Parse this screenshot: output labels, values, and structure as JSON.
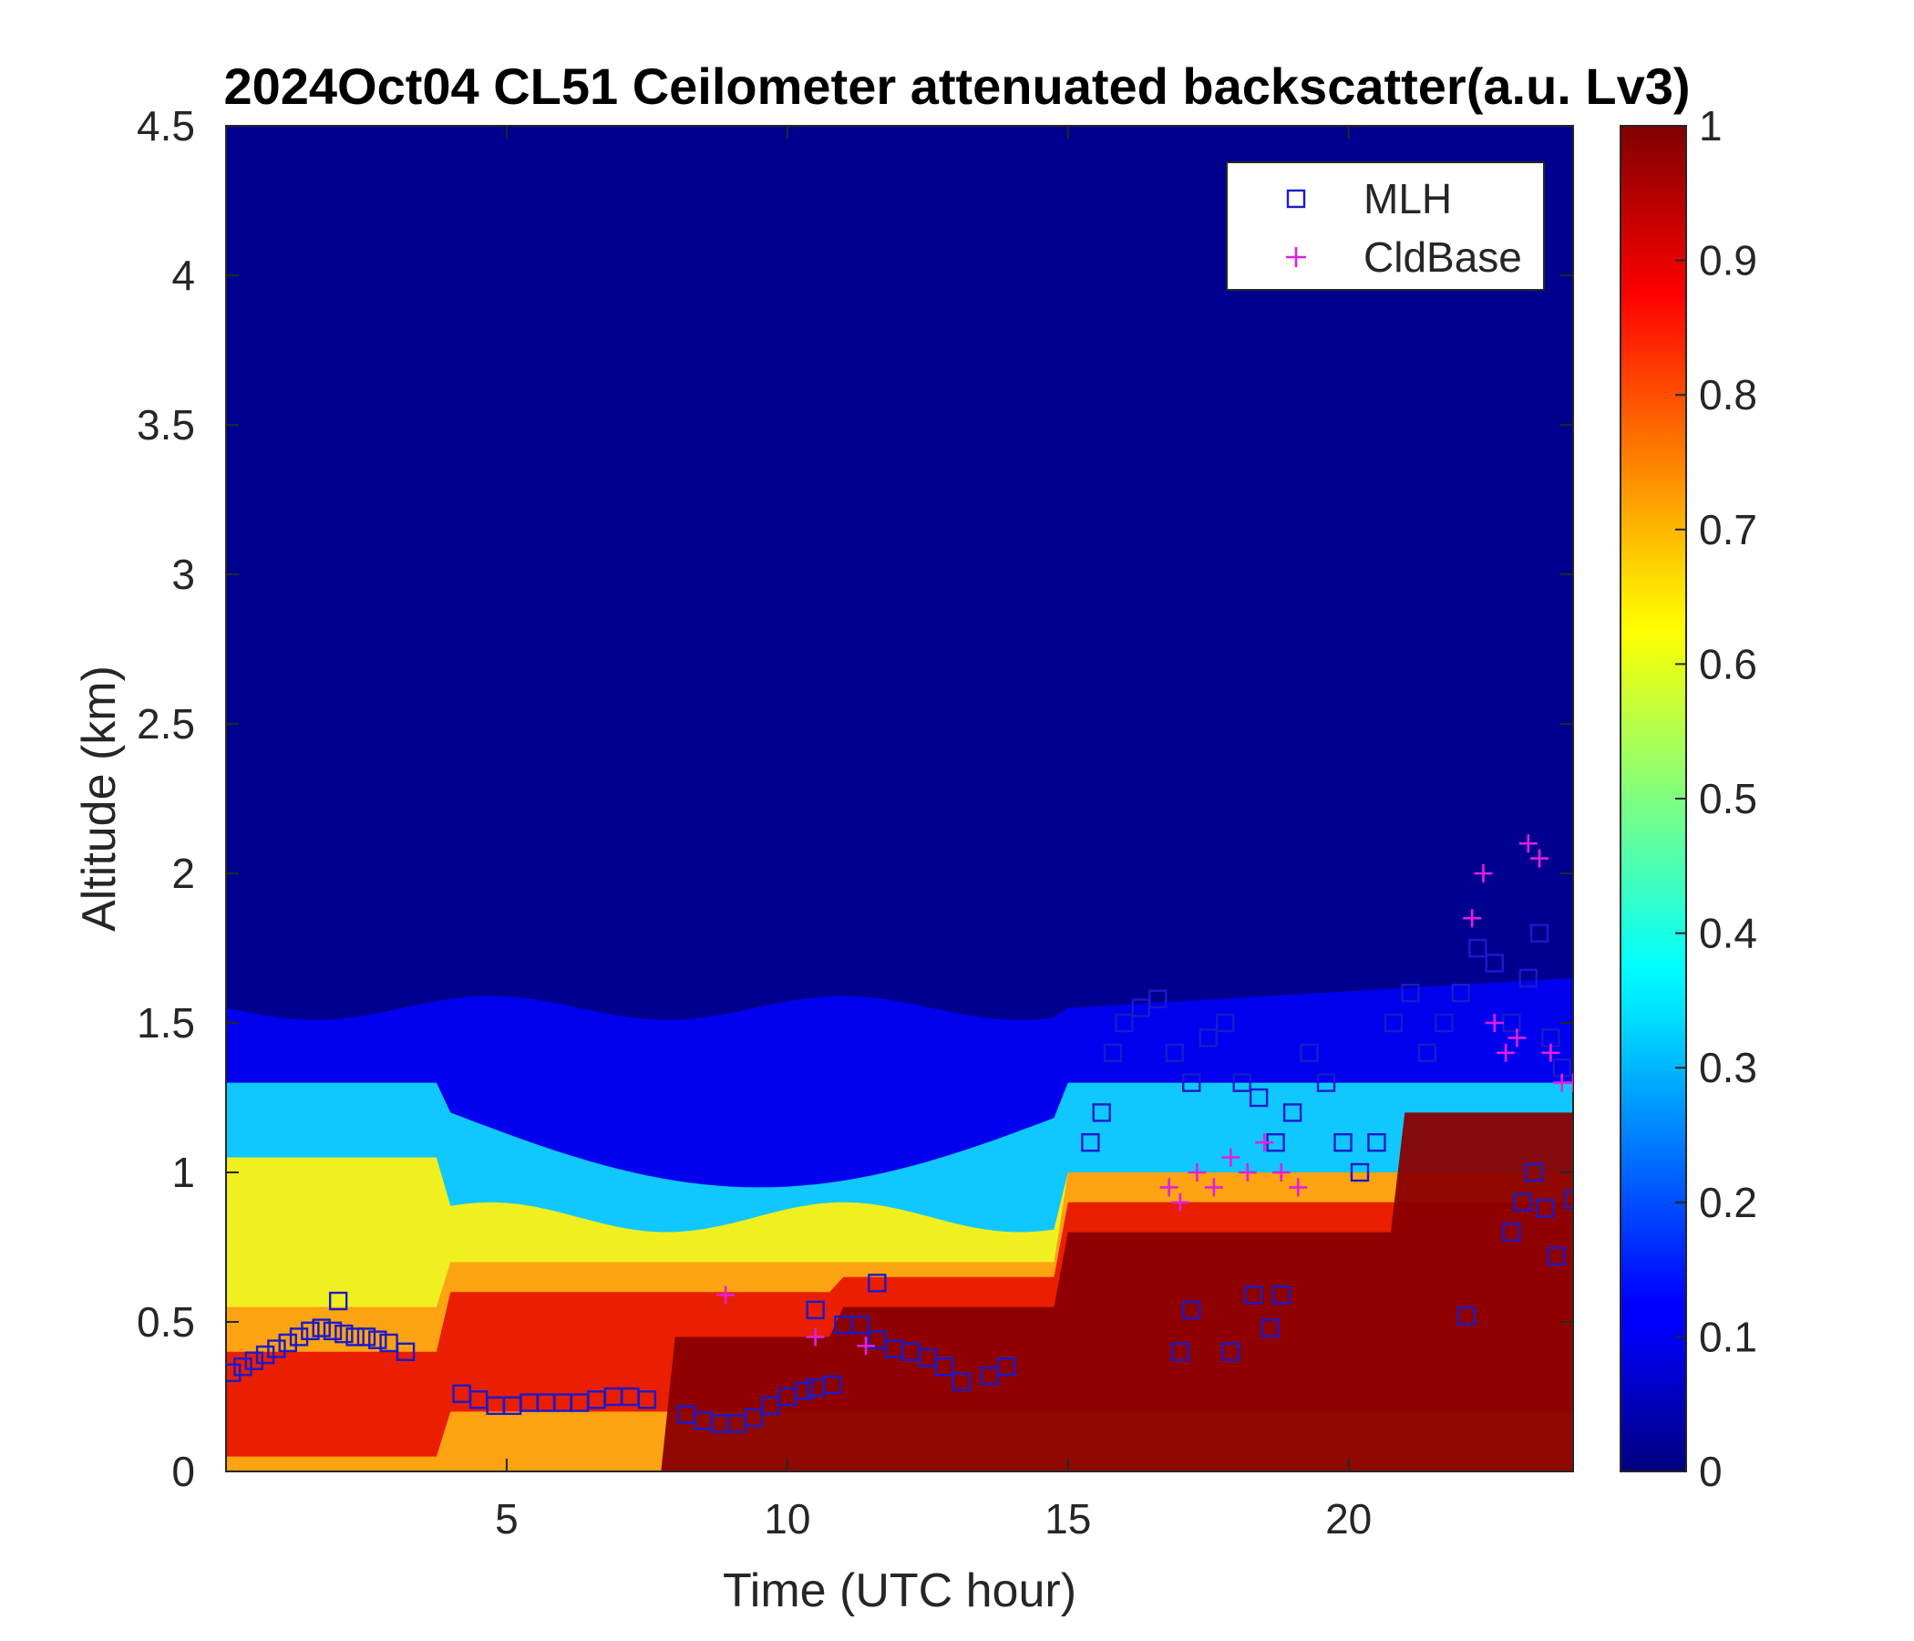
{
  "chart_data": {
    "type": "heatmap",
    "title": "2024Oct04 CL51 Ceilometer attenuated backscatter(a.u. Lv3)",
    "xlabel": "Time (UTC hour)",
    "ylabel": "Altitude (km)",
    "xlim": [
      0,
      24
    ],
    "ylim": [
      0,
      4.5
    ],
    "x_ticks": [
      "5",
      "10",
      "15",
      "20"
    ],
    "y_ticks": [
      "0",
      "0.5",
      "1",
      "1.5",
      "2",
      "2.5",
      "3",
      "3.5",
      "4",
      "4.5"
    ],
    "colorbar": {
      "range": [
        0,
        1
      ],
      "ticks": [
        "0",
        "0.1",
        "0.2",
        "0.3",
        "0.4",
        "0.5",
        "0.6",
        "0.7",
        "0.8",
        "0.9",
        "1"
      ],
      "colormap": "jet"
    },
    "legend": {
      "placement": "top-right",
      "entries": [
        {
          "label": "MLH",
          "marker": "square",
          "color": "#1a1acc"
        },
        {
          "label": "CldBase",
          "marker": "plus",
          "color": "#e020e0"
        }
      ]
    },
    "series": [
      {
        "name": "MLH",
        "marker": "square",
        "color": "#1a1acc",
        "x": [
          0.1,
          0.3,
          0.5,
          0.7,
          0.9,
          1.1,
          1.3,
          1.5,
          1.7,
          1.9,
          2.1,
          2.3,
          2.5,
          2.7,
          2.9,
          3.2,
          4.2,
          4.5,
          4.8,
          5.1,
          5.4,
          5.7,
          6.0,
          6.3,
          6.6,
          6.9,
          7.2,
          7.5,
          8.2,
          8.5,
          8.8,
          9.1,
          9.4,
          9.7,
          10.0,
          10.3,
          10.5,
          10.8,
          11.0,
          11.3,
          11.6,
          11.9,
          12.2,
          12.5,
          12.8,
          13.1,
          13.6,
          13.9,
          15.4,
          15.6,
          15.8,
          16.0,
          16.3,
          16.6,
          16.9,
          17.2,
          17.5,
          17.8,
          18.1,
          18.4,
          18.7,
          19.0,
          19.3,
          19.6,
          19.9,
          20.2,
          20.5,
          20.8,
          21.1,
          21.4,
          21.7,
          22.0,
          22.3,
          22.6,
          22.9,
          23.2,
          23.4,
          23.6,
          23.8,
          24.0,
          2.0,
          10.5,
          11.6,
          17.0,
          17.2,
          17.9,
          18.3,
          18.6,
          18.8,
          22.1,
          22.9,
          23.1,
          23.3,
          23.5,
          23.7
        ],
        "y": [
          0.33,
          0.35,
          0.37,
          0.39,
          0.41,
          0.43,
          0.45,
          0.47,
          0.48,
          0.47,
          0.46,
          0.45,
          0.45,
          0.44,
          0.43,
          0.4,
          0.26,
          0.24,
          0.22,
          0.22,
          0.23,
          0.23,
          0.23,
          0.23,
          0.24,
          0.25,
          0.25,
          0.24,
          0.19,
          0.17,
          0.16,
          0.16,
          0.18,
          0.22,
          0.25,
          0.27,
          0.28,
          0.29,
          0.49,
          0.49,
          0.44,
          0.41,
          0.4,
          0.38,
          0.35,
          0.3,
          0.32,
          0.35,
          1.1,
          1.2,
          1.4,
          1.5,
          1.55,
          1.58,
          1.4,
          1.3,
          1.45,
          1.5,
          1.3,
          1.25,
          1.1,
          1.2,
          1.4,
          1.3,
          1.1,
          1.0,
          1.1,
          1.5,
          1.6,
          1.4,
          1.5,
          1.6,
          1.75,
          1.7,
          1.5,
          1.65,
          1.8,
          1.45,
          1.35,
          0.91,
          0.57,
          0.54,
          0.63,
          0.4,
          0.54,
          0.4,
          0.59,
          0.48,
          0.59,
          0.52,
          0.8,
          0.9,
          1.0,
          0.88,
          0.72
        ]
      },
      {
        "name": "CldBase",
        "marker": "plus",
        "color": "#e020e0",
        "x": [
          8.9,
          10.5,
          11.4,
          16.8,
          17.0,
          17.3,
          17.6,
          17.9,
          18.2,
          18.5,
          18.8,
          19.1,
          22.2,
          22.4,
          22.6,
          22.8,
          23.0,
          23.2,
          23.4,
          23.6,
          23.8,
          24.0
        ],
        "y": [
          0.59,
          0.45,
          0.42,
          0.95,
          0.9,
          1.0,
          0.95,
          1.05,
          1.0,
          1.1,
          1.0,
          0.95,
          1.85,
          2.0,
          1.5,
          1.4,
          1.45,
          2.1,
          2.05,
          1.4,
          1.3,
          1.3
        ]
      }
    ]
  }
}
